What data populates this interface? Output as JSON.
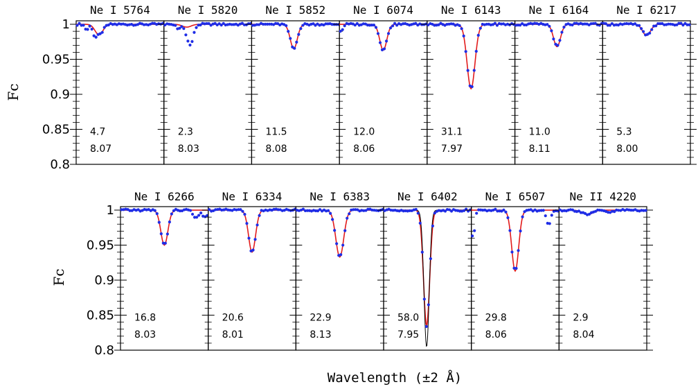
{
  "figure": {
    "xlabel": "Wavelength (±2 Å)",
    "ylabel": "Fc",
    "colors": {
      "observed": "#1f2de6",
      "synthetic": "#e21a1a",
      "extra_synthetic": "#000000",
      "frame": "#000000"
    }
  },
  "chart_data": [
    {
      "type": "line",
      "ylabel": "Fc",
      "ylim": [
        0.8,
        1.005
      ],
      "yticks": [
        "0.8",
        "0.85",
        "0.9",
        "0.95",
        "1"
      ],
      "panels": [
        {
          "title": "Ne I 5764",
          "ew": "4.7",
          "abund": "8.07",
          "line_center": 0.26,
          "depth": 0.015,
          "sigma": 0.045,
          "observed_extras": [
            {
              "c": 0.12,
              "d": 0.008,
              "s": 0.02
            },
            {
              "c": 0.21,
              "d": 0.01,
              "s": 0.02
            }
          ]
        },
        {
          "title": "Ne I 5820",
          "ew": "2.3",
          "abund": "8.03",
          "line_center": 0.26,
          "depth": 0.004,
          "sigma": 0.05,
          "observed_extras": [
            {
              "c": 0.3,
              "d": 0.027,
              "s": 0.035
            },
            {
              "c": 0.16,
              "d": 0.007,
              "s": 0.02
            }
          ]
        },
        {
          "title": "Ne I 5852",
          "ew": "11.5",
          "abund": "8.08",
          "line_center": 0.48,
          "depth": 0.035,
          "sigma": 0.04,
          "observed_extras": []
        },
        {
          "title": "Ne I 6074",
          "ew": "12.0",
          "abund": "8.06",
          "line_center": 0.5,
          "depth": 0.037,
          "sigma": 0.04,
          "observed_extras": [
            {
              "c": 0.02,
              "d": 0.01,
              "s": 0.02
            }
          ]
        },
        {
          "title": "Ne I 6143",
          "ew": "31.1",
          "abund": "7.97",
          "line_center": 0.5,
          "depth": 0.092,
          "sigma": 0.045,
          "observed_extras": []
        },
        {
          "title": "Ne I 6164",
          "ew": "11.0",
          "abund": "8.11",
          "line_center": 0.48,
          "depth": 0.032,
          "sigma": 0.04,
          "observed_extras": []
        },
        {
          "title": "Ne I 6217",
          "ew": "5.3",
          "abund": "8.00",
          "line_center": 0.5,
          "depth": 0.016,
          "sigma": 0.045,
          "observed_extras": []
        }
      ]
    },
    {
      "type": "line",
      "ylabel": "Fc",
      "ylim": [
        0.8,
        1.005
      ],
      "yticks": [
        "0.8",
        "0.85",
        "0.9",
        "0.95",
        "1"
      ],
      "panels": [
        {
          "title": "Ne I 6266",
          "ew": "16.8",
          "abund": "8.03",
          "line_center": 0.5,
          "depth": 0.05,
          "sigma": 0.04,
          "observed_extras": [
            {
              "c": 0.86,
              "d": 0.012,
              "s": 0.03
            },
            {
              "c": 0.96,
              "d": 0.01,
              "s": 0.03
            }
          ]
        },
        {
          "title": "Ne I 6334",
          "ew": "20.6",
          "abund": "8.01",
          "line_center": 0.5,
          "depth": 0.06,
          "sigma": 0.04,
          "observed_extras": []
        },
        {
          "title": "Ne I 6383",
          "ew": "22.9",
          "abund": "8.13",
          "line_center": 0.5,
          "depth": 0.067,
          "sigma": 0.045,
          "observed_extras": []
        },
        {
          "title": "Ne I 6402",
          "ew": "58.0",
          "abund": "7.95",
          "line_center": 0.49,
          "depth": 0.165,
          "sigma": 0.035,
          "observed_extras": [],
          "extra_model_depth": 0.195
        },
        {
          "title": "Ne I 6507",
          "ew": "29.8",
          "abund": "8.06",
          "line_center": 0.5,
          "depth": 0.087,
          "sigma": 0.04,
          "observed_extras": [
            {
              "c": 0.02,
              "d": 0.04,
              "s": 0.02
            },
            {
              "c": 0.88,
              "d": 0.022,
              "s": 0.025
            }
          ]
        },
        {
          "title": "Ne II 4220",
          "ew": "2.9",
          "abund": "8.04",
          "line_center": 0.33,
          "depth": 0.006,
          "sigma": 0.06,
          "observed_extras": [
            {
              "c": 0.58,
              "d": 0.003,
              "s": 0.05
            }
          ]
        }
      ]
    }
  ]
}
